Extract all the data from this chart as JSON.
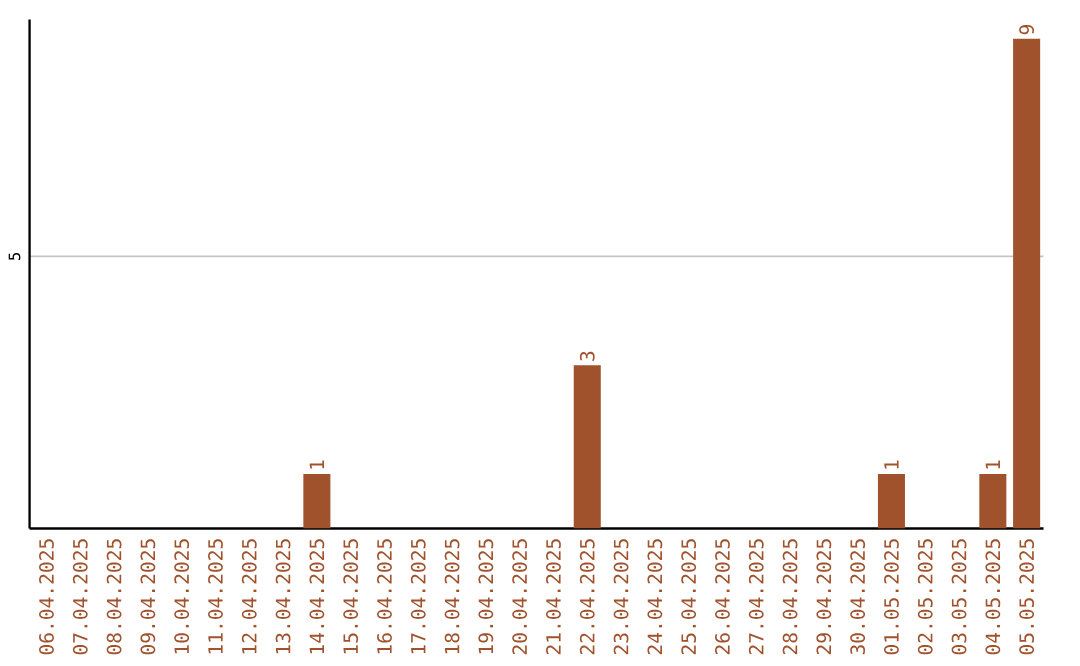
{
  "chart_data": {
    "type": "bar",
    "categories": [
      "06.04.2025",
      "07.04.2025",
      "08.04.2025",
      "09.04.2025",
      "10.04.2025",
      "11.04.2025",
      "12.04.2025",
      "13.04.2025",
      "14.04.2025",
      "15.04.2025",
      "16.04.2025",
      "17.04.2025",
      "18.04.2025",
      "19.04.2025",
      "20.04.2025",
      "21.04.2025",
      "22.04.2025",
      "23.04.2025",
      "24.04.2025",
      "25.04.2025",
      "26.04.2025",
      "27.04.2025",
      "28.04.2025",
      "29.04.2025",
      "30.04.2025",
      "01.05.2025",
      "02.05.2025",
      "03.05.2025",
      "04.05.2025",
      "05.05.2025"
    ],
    "values": [
      0,
      0,
      0,
      0,
      0,
      0,
      0,
      0,
      1,
      0,
      0,
      0,
      0,
      0,
      0,
      0,
      3,
      0,
      0,
      0,
      0,
      0,
      0,
      0,
      0,
      1,
      0,
      0,
      1,
      9
    ],
    "value_labels": [
      null,
      null,
      null,
      null,
      null,
      null,
      null,
      null,
      "1",
      null,
      null,
      null,
      null,
      null,
      null,
      null,
      "3",
      null,
      null,
      null,
      null,
      null,
      null,
      null,
      null,
      "1",
      null,
      null,
      "1",
      "9"
    ],
    "color": "#a0522d",
    "ylim": [
      0,
      9.35
    ],
    "yticks": [
      5
    ],
    "grid": "y"
  }
}
